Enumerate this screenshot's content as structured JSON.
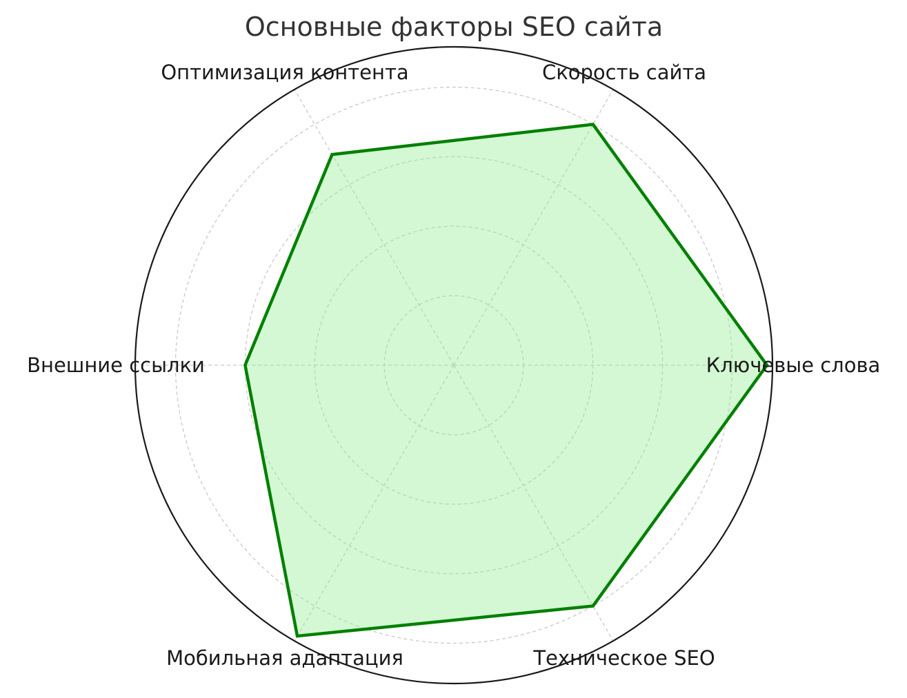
{
  "chart_data": {
    "type": "radar",
    "title": "Основные факторы SEO сайта",
    "categories": [
      "Ключевые слова",
      "Скорость сайта",
      "Оптимизация контента",
      "Внешние ссылки",
      "Мобильная адаптация",
      "Техническое SEO"
    ],
    "values": [
      90,
      80,
      70,
      60,
      90,
      80
    ],
    "rlim": [
      0,
      91.6
    ],
    "rgrid": [
      20,
      40,
      60,
      80
    ],
    "radial_tick_labels_visible": false,
    "grid": true,
    "colors": {
      "line": "#008000",
      "fill": "#90ee90",
      "grid": "#c8c8c8",
      "frame": "#1a1a1a"
    }
  }
}
